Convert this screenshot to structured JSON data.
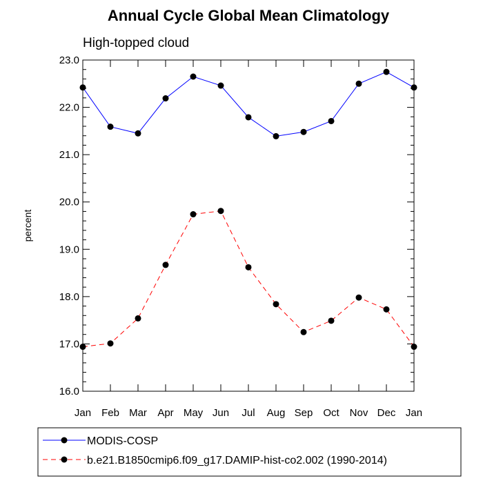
{
  "chart_data": {
    "type": "line",
    "title": "Annual Cycle Global Mean Climatology",
    "subtitle": "High-topped cloud",
    "xlabel": "",
    "ylabel": "percent",
    "categories": [
      "Jan",
      "Feb",
      "Mar",
      "Apr",
      "May",
      "Jun",
      "Jul",
      "Aug",
      "Sep",
      "Oct",
      "Nov",
      "Dec",
      "Jan"
    ],
    "ylim": [
      16.0,
      23.0
    ],
    "yticks": [
      "16.0",
      "17.0",
      "18.0",
      "19.0",
      "20.0",
      "21.0",
      "22.0",
      "23.0"
    ],
    "grid": false,
    "legend_position": "bottom",
    "series": [
      {
        "name": "MODIS-COSP",
        "color": "#0000ff",
        "line_style": "solid",
        "marker": "filled-circle",
        "values": [
          22.42,
          21.59,
          21.45,
          22.19,
          22.65,
          22.46,
          21.79,
          21.39,
          21.48,
          21.71,
          22.5,
          22.75,
          22.42
        ]
      },
      {
        "name": "b.e21.B1850cmip6.f09_g17.DAMIP-hist-co2.002 (1990-2014)",
        "color": "#ff0000",
        "line_style": "dashed",
        "marker": "filled-circle",
        "values": [
          16.94,
          17.01,
          17.54,
          18.67,
          19.74,
          19.81,
          18.62,
          17.84,
          17.25,
          17.49,
          17.98,
          17.73,
          16.94
        ]
      }
    ]
  }
}
